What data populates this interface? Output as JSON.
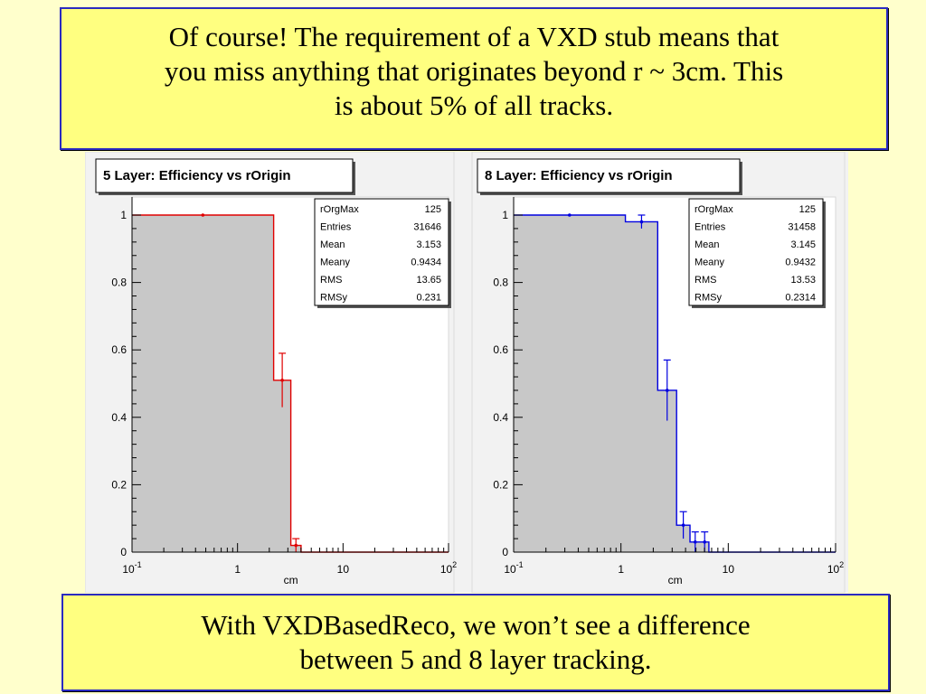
{
  "top_text": [
    "Of course! The requirement of a VXD stub means that",
    "you miss anything that originates beyond r ~ 3cm. This",
    "is about 5% of all tracks."
  ],
  "bottom_text": [
    "With VXDBasedReco, we won’t see a difference",
    "between 5 and 8 layer tracking."
  ],
  "chart_data": [
    {
      "type": "histogram",
      "title": "5 Layer: Efficiency vs rOrigin",
      "xlabel": "cm",
      "ylabel": "",
      "x_scale": "log",
      "xlim": [
        0.1,
        100
      ],
      "ylim": [
        0,
        1.0
      ],
      "x_ticks": [
        "10^-1",
        "1",
        "10",
        "10^2"
      ],
      "y_ticks": [
        "0",
        "0.2",
        "0.4",
        "0.6",
        "0.8",
        "1"
      ],
      "line_color": "#e00000",
      "bins": [
        {
          "x_low": 0.1,
          "x_high": 2.2,
          "value": 1.0,
          "err": 0.0
        },
        {
          "x_low": 2.2,
          "x_high": 3.2,
          "value": 0.51,
          "err": 0.08
        },
        {
          "x_low": 3.2,
          "x_high": 4.0,
          "value": 0.02,
          "err": 0.02
        },
        {
          "x_low": 4.0,
          "x_high": 100,
          "value": 0.0,
          "err": 0.0
        }
      ],
      "stats": [
        {
          "label": "rOrgMax",
          "value": "125"
        },
        {
          "label": "Entries",
          "value": "31646"
        },
        {
          "label": "Mean",
          "value": "3.153"
        },
        {
          "label": "Meany",
          "value": "0.9434"
        },
        {
          "label": "RMS",
          "value": "13.65"
        },
        {
          "label": "RMSy",
          "value": "0.231"
        }
      ]
    },
    {
      "type": "histogram",
      "title": "8 Layer: Efficiency vs rOrigin",
      "xlabel": "cm",
      "ylabel": "",
      "x_scale": "log",
      "xlim": [
        0.1,
        100
      ],
      "ylim": [
        0,
        1.0
      ],
      "x_ticks": [
        "10^-1",
        "1",
        "10",
        "10^2"
      ],
      "y_ticks": [
        "0",
        "0.2",
        "0.4",
        "0.6",
        "0.8",
        "1"
      ],
      "line_color": "#0000e0",
      "bins": [
        {
          "x_low": 0.1,
          "x_high": 1.1,
          "value": 1.0,
          "err": 0.0
        },
        {
          "x_low": 1.1,
          "x_high": 2.2,
          "value": 0.98,
          "err": 0.02
        },
        {
          "x_low": 2.2,
          "x_high": 3.3,
          "value": 0.48,
          "err": 0.09
        },
        {
          "x_low": 3.3,
          "x_high": 4.4,
          "value": 0.08,
          "err": 0.04
        },
        {
          "x_low": 4.4,
          "x_high": 5.5,
          "value": 0.03,
          "err": 0.03
        },
        {
          "x_low": 5.5,
          "x_high": 6.6,
          "value": 0.03,
          "err": 0.03
        },
        {
          "x_low": 6.6,
          "x_high": 100,
          "value": 0.0,
          "err": 0.0
        }
      ],
      "stats": [
        {
          "label": "rOrgMax",
          "value": "125"
        },
        {
          "label": "Entries",
          "value": "31458"
        },
        {
          "label": "Mean",
          "value": "3.145"
        },
        {
          "label": "Meany",
          "value": "0.9432"
        },
        {
          "label": "RMS",
          "value": "13.53"
        },
        {
          "label": "RMSy",
          "value": "0.2314"
        }
      ]
    }
  ]
}
